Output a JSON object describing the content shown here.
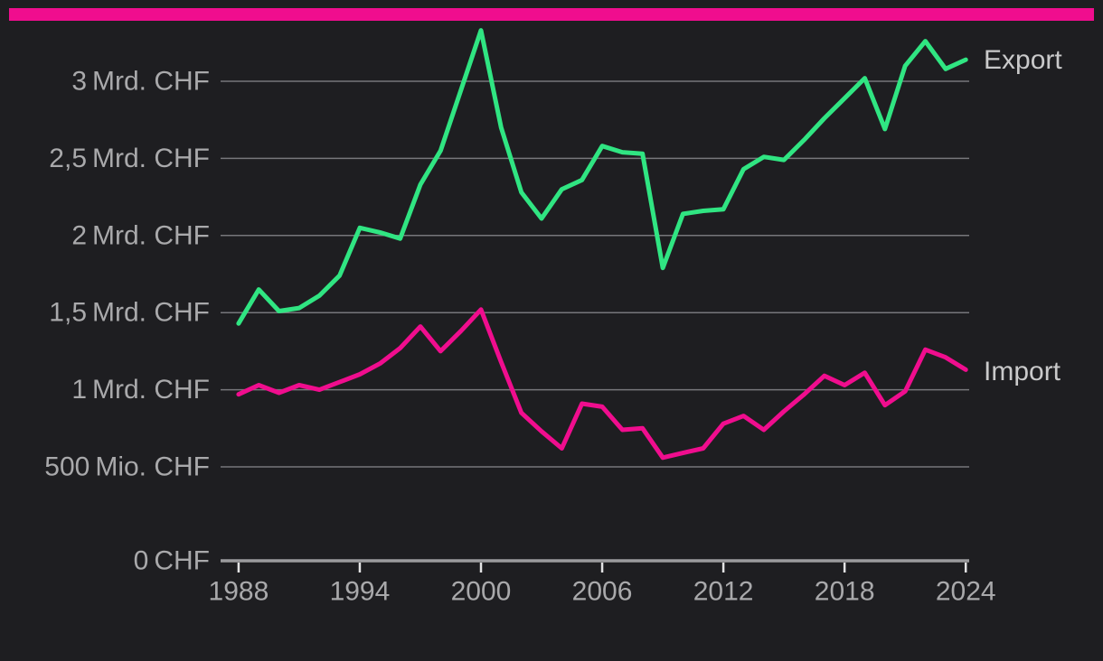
{
  "page": {
    "background_color": "#1e1e21"
  },
  "accent_bar": {
    "color": "#f00d8e"
  },
  "chart_data": {
    "type": "line",
    "unit": "CHF",
    "x": [
      1988,
      1989,
      1990,
      1991,
      1992,
      1993,
      1994,
      1995,
      1996,
      1997,
      1998,
      1999,
      2000,
      2001,
      2002,
      2003,
      2004,
      2005,
      2006,
      2007,
      2008,
      2009,
      2010,
      2011,
      2012,
      2013,
      2014,
      2015,
      2016,
      2017,
      2018,
      2019,
      2020,
      2021,
      2022,
      2023,
      2024
    ],
    "series": [
      {
        "name": "Export",
        "color": "#30e582",
        "values": [
          1.43,
          1.65,
          1.51,
          1.53,
          1.61,
          1.74,
          2.05,
          2.02,
          1.98,
          2.33,
          2.55,
          2.94,
          3.33,
          2.7,
          2.28,
          2.11,
          2.3,
          2.36,
          2.58,
          2.54,
          2.53,
          1.79,
          2.14,
          2.16,
          2.17,
          2.43,
          2.51,
          2.49,
          2.62,
          2.76,
          2.89,
          3.02,
          2.69,
          3.1,
          3.26,
          3.08,
          3.14
        ]
      },
      {
        "name": "Import",
        "color": "#f00d8e",
        "values": [
          0.97,
          1.03,
          0.98,
          1.03,
          1.0,
          1.05,
          1.1,
          1.17,
          1.27,
          1.41,
          1.25,
          1.38,
          1.52,
          1.18,
          0.85,
          0.73,
          0.62,
          0.91,
          0.89,
          0.74,
          0.75,
          0.56,
          0.59,
          0.62,
          0.78,
          0.83,
          0.74,
          0.86,
          0.97,
          1.09,
          1.03,
          1.11,
          0.9,
          0.99,
          1.26,
          1.21,
          1.13
        ]
      }
    ],
    "y_ticks": [
      {
        "value": 3,
        "label": "3 Mrd. CHF"
      },
      {
        "value": 2.5,
        "label": "2,5 Mrd. CHF"
      },
      {
        "value": 2,
        "label": "2 Mrd. CHF"
      },
      {
        "value": 1.5,
        "label": "1,5 Mrd. CHF"
      },
      {
        "value": 1,
        "label": "1 Mrd. CHF"
      },
      {
        "value": 0.5,
        "label": "500 Mio. CHF"
      },
      {
        "value": 0,
        "label": "0 CHF"
      }
    ],
    "x_tick_labels": [
      "1988",
      "1994",
      "2000",
      "2006",
      "2012",
      "2018",
      "2024"
    ],
    "x_tick_years": [
      1988,
      1994,
      2000,
      2006,
      2012,
      2018,
      2024
    ],
    "ylim": [
      0,
      3.35
    ],
    "grid": true,
    "legend_position": "right-of-line-ends",
    "styles": {
      "grid_color": "#77777b",
      "axis_color": "#9b9b9e",
      "tick_color": "#e3e3e4",
      "axis_label_color": "#a9a9ab",
      "series_label_color": "#c9c9ca"
    }
  }
}
